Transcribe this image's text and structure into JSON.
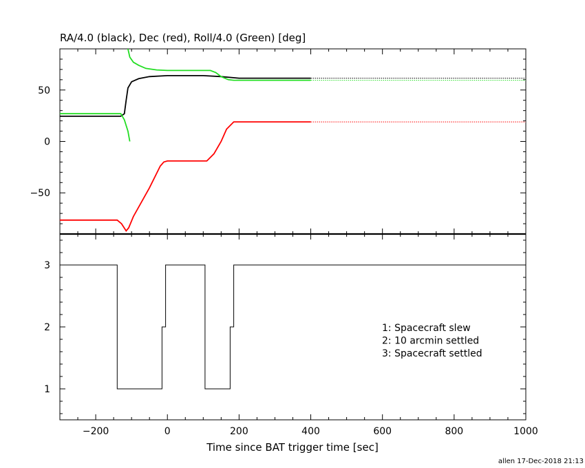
{
  "chart_data": [
    {
      "type": "line",
      "title": "RA/4.0 (black), Dec (red), Roll/4.0 (Green) [deg]",
      "xlim": [
        -300,
        1000
      ],
      "ylim": [
        -90,
        90
      ],
      "yticks": [
        -50,
        0,
        50
      ],
      "grid": false,
      "series": [
        {
          "color": "#000000",
          "points": [
            [
              -300,
              24.5
            ],
            [
              -130,
              24.5
            ],
            [
              -120,
              27
            ],
            [
              -115,
              40
            ],
            [
              -110,
              52
            ],
            [
              -100,
              58
            ],
            [
              -80,
              61
            ],
            [
              -50,
              63
            ],
            [
              0,
              64
            ],
            [
              100,
              64
            ],
            [
              150,
              63
            ],
            [
              200,
              61.5
            ],
            [
              400,
              61.5
            ]
          ],
          "dotted_points": [
            [
              400,
              61.5
            ],
            [
              1000,
              61.5
            ]
          ]
        },
        {
          "color": "#ff0000",
          "points": [
            [
              -300,
              -76.5
            ],
            [
              -140,
              -76.5
            ],
            [
              -128,
              -80
            ],
            [
              -115,
              -87
            ],
            [
              -108,
              -84
            ],
            [
              -95,
              -73
            ],
            [
              -50,
              -45
            ],
            [
              -20,
              -24
            ],
            [
              -10,
              -20
            ],
            [
              0,
              -19
            ],
            [
              110,
              -19
            ],
            [
              130,
              -12
            ],
            [
              150,
              0
            ],
            [
              165,
              12
            ],
            [
              185,
              19
            ],
            [
              400,
              19
            ]
          ],
          "dotted_points": [
            [
              400,
              19
            ],
            [
              1000,
              19
            ]
          ]
        },
        {
          "color": "#22dd22",
          "points": [
            [
              -300,
              27
            ],
            [
              -130,
              27
            ],
            [
              -120,
              21
            ],
            [
              -110,
              10
            ],
            [
              -105,
              0
            ]
          ],
          "extra_points": [
            [
              -110,
              90
            ],
            [
              -105,
              82
            ],
            [
              -95,
              77
            ],
            [
              -80,
              74
            ],
            [
              -60,
              71
            ],
            [
              -30,
              69.5
            ],
            [
              0,
              69
            ],
            [
              120,
              69
            ],
            [
              135,
              67
            ],
            [
              150,
              63
            ],
            [
              170,
              60
            ],
            [
              185,
              59.5
            ],
            [
              400,
              59.5
            ]
          ],
          "dotted_points": [
            [
              400,
              59.5
            ],
            [
              1000,
              59.5
            ]
          ]
        }
      ]
    },
    {
      "type": "line",
      "xlabel": "Time since BAT trigger time [sec]",
      "xlim": [
        -300,
        1000
      ],
      "ylim": [
        0.5,
        3.5
      ],
      "xticks": [
        -200,
        0,
        200,
        400,
        600,
        800,
        1000
      ],
      "yticks": [
        1,
        2,
        3
      ],
      "series": [
        {
          "color": "#000000",
          "step_points": [
            [
              -300,
              3
            ],
            [
              -140,
              3
            ],
            [
              -140,
              1
            ],
            [
              -15,
              1
            ],
            [
              -15,
              2
            ],
            [
              -5,
              2
            ],
            [
              -5,
              3
            ],
            [
              105,
              3
            ],
            [
              105,
              1
            ],
            [
              175,
              1
            ],
            [
              175,
              2
            ],
            [
              185,
              2
            ],
            [
              185,
              3
            ],
            [
              1000,
              3
            ]
          ]
        }
      ],
      "legend": {
        "placement": "right",
        "entries": [
          "1: Spacecraft slew",
          "2: 10 arcmin settled",
          "3: Spacecraft settled"
        ]
      }
    }
  ],
  "footer": "allen 17-Dec-2018 21:13"
}
